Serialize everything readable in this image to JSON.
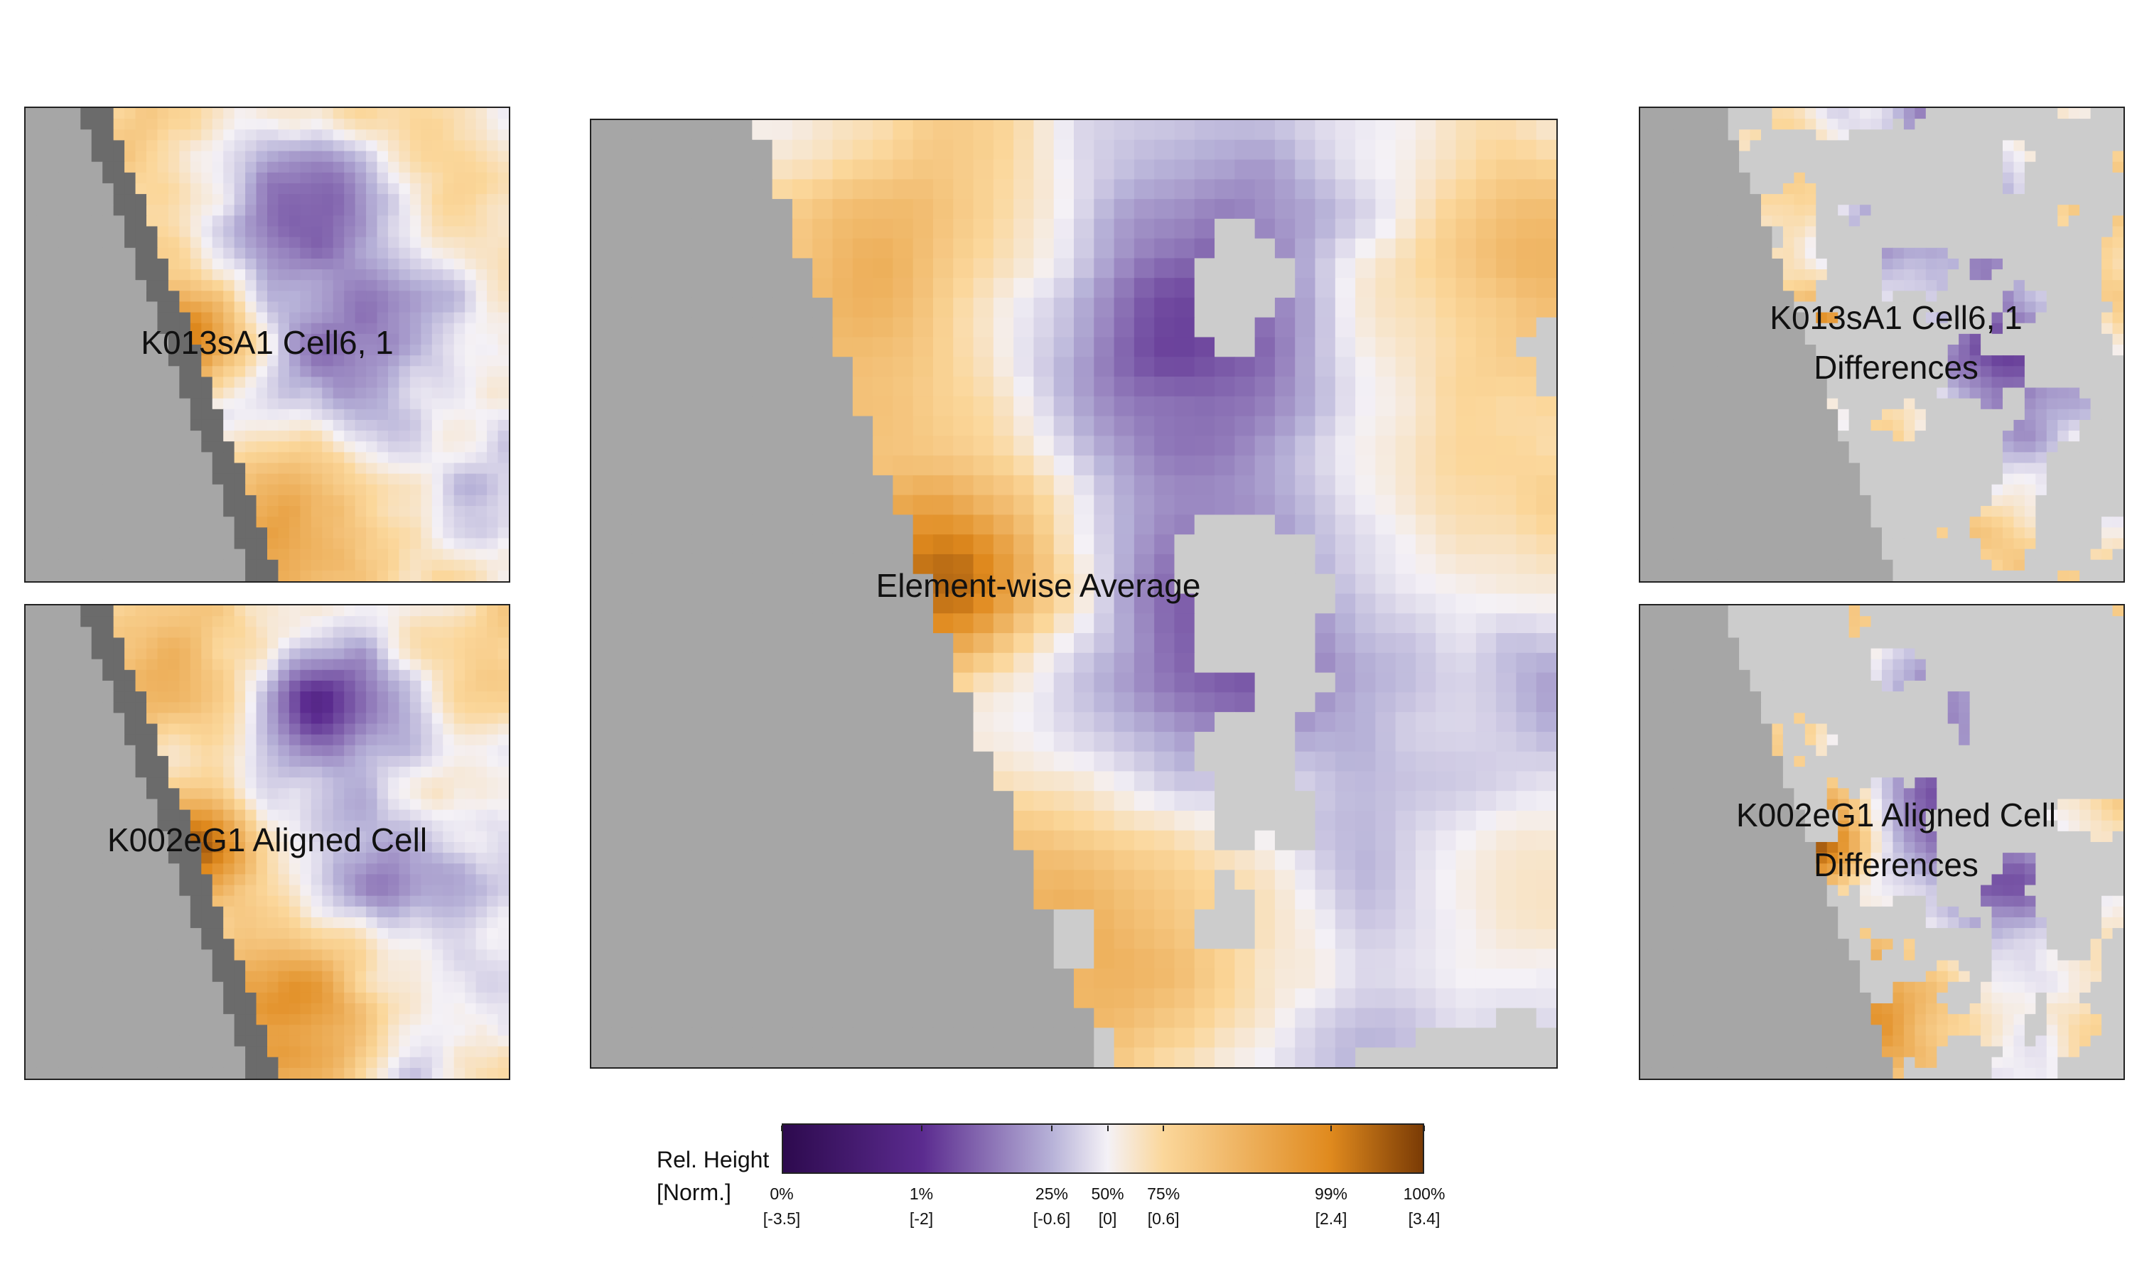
{
  "chart_data": {
    "type": "heatmap",
    "panels": [
      {
        "id": "cell1",
        "title": "K013sA1 Cell6, 1"
      },
      {
        "id": "cell2",
        "title": "K002eG1 Aligned Cell"
      },
      {
        "id": "average",
        "title": "Element-wise Average"
      },
      {
        "id": "diff1",
        "title_lines": [
          "K013sA1 Cell6, 1",
          "Differences"
        ]
      },
      {
        "id": "diff2",
        "title_lines": [
          "K002eG1 Aligned Cell",
          "Differences"
        ]
      }
    ],
    "colorbar": {
      "label_line1": "Rel. Height",
      "label_line2": "[Norm.]",
      "ticks": [
        {
          "pct": "0%",
          "value": "[-3.5]",
          "norm": -3.5
        },
        {
          "pct": "1%",
          "value": "[-2]",
          "norm": -2
        },
        {
          "pct": "25%",
          "value": "[-0.6]",
          "norm": -0.6
        },
        {
          "pct": "50%",
          "value": "[0]",
          "norm": 0
        },
        {
          "pct": "75%",
          "value": "[0.6]",
          "norm": 0.6
        },
        {
          "pct": "99%",
          "value": "[2.4]",
          "norm": 2.4
        },
        {
          "pct": "100%",
          "value": "[3.4]",
          "norm": 3.4
        }
      ],
      "range": [
        -3.5,
        3.4
      ],
      "colors": [
        "#2d0a4e",
        "#5b2b8f",
        "#b7b2d8",
        "#f4f1f6",
        "#fbd79b",
        "#e08a1e",
        "#7a3b05"
      ]
    },
    "masked_color_region": "#a6a6a6",
    "masked_color_inner": "#cccccc",
    "masked_color_dark": "#6b6b6b"
  }
}
